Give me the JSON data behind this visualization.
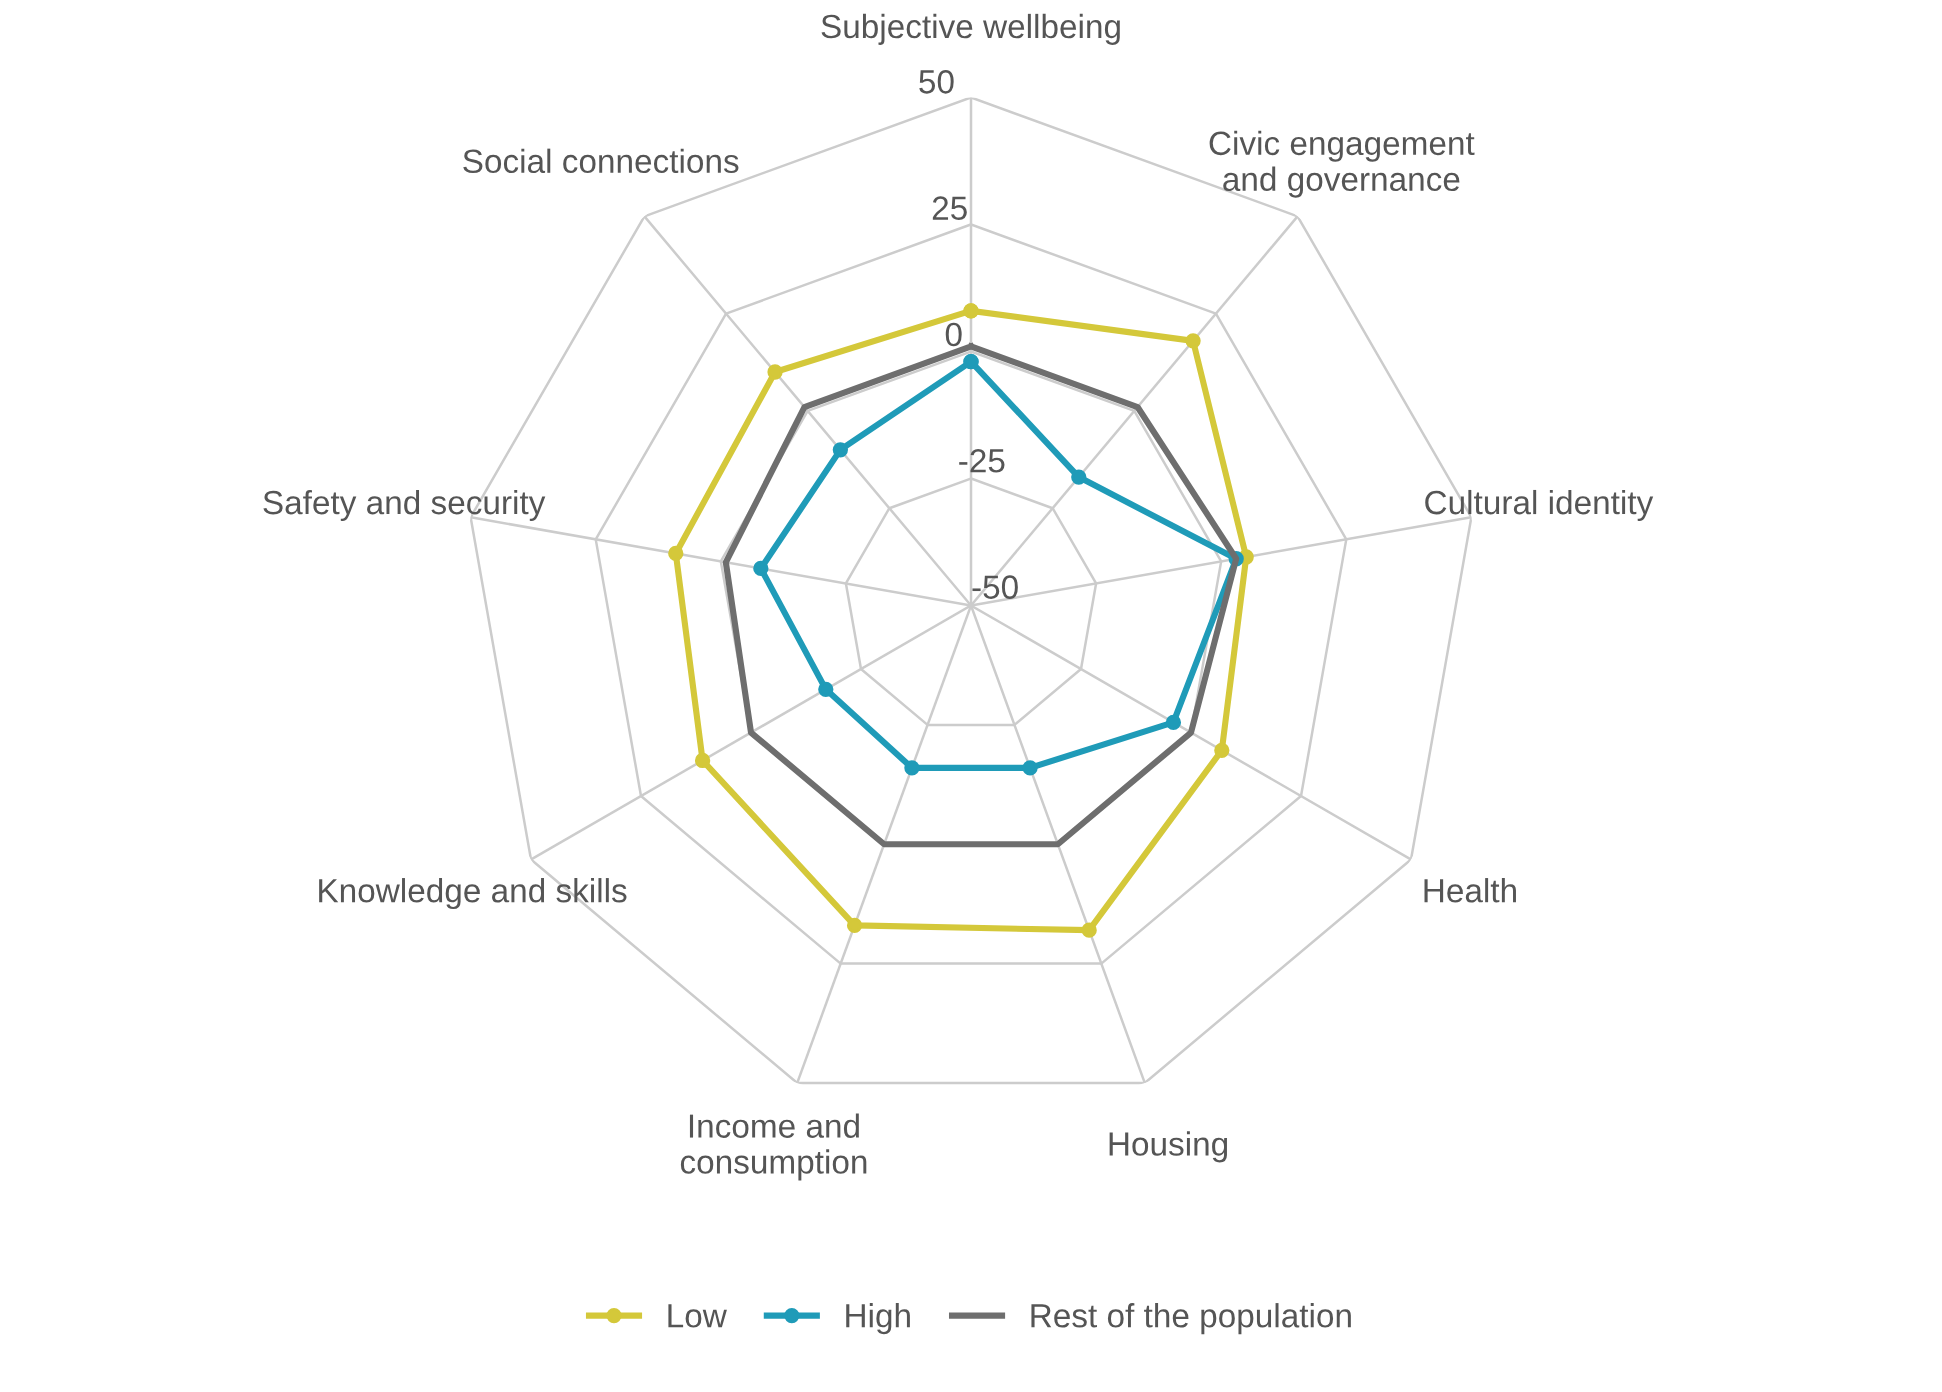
{
  "chart_data": {
    "type": "radar",
    "categories": [
      "Subjective wellbeing",
      "Civic engagement\nand governance",
      "Cultural identity",
      "Health",
      "Housing",
      "Income and\nconsumption",
      "Knowledge and skills",
      "Safety and security",
      "Social connections"
    ],
    "series": [
      {
        "name": "Low",
        "color": "#d4c83a",
        "marker": "circle",
        "values": [
          8,
          18,
          5,
          7,
          18,
          17,
          11,
          9,
          10
        ]
      },
      {
        "name": "High",
        "color": "#1f9bb8",
        "marker": "circle",
        "values": [
          -2,
          -17,
          3,
          -4,
          -16,
          -16,
          -17,
          -8,
          -10
        ]
      },
      {
        "name": "Rest of the population",
        "color": "#6e6e6e",
        "marker": "none",
        "values": [
          1,
          1,
          3,
          0,
          0,
          0,
          0,
          -1,
          1
        ]
      }
    ],
    "ylim": [
      -50,
      50
    ],
    "yticks": [
      -50,
      -25,
      0,
      25,
      50
    ],
    "grid": true,
    "legend": "bottom"
  }
}
